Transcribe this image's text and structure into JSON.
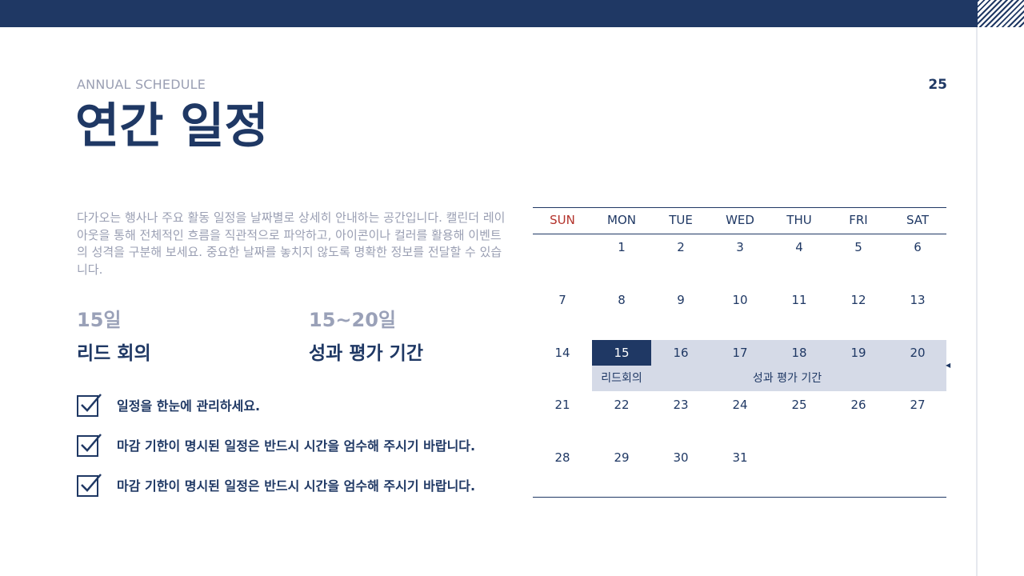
{
  "header": {
    "subtitle": "ANNUAL SCHEDULE",
    "title": "연간 일정",
    "page_number": "25"
  },
  "description": "다가오는 행사나 주요 활동 일정을 날짜별로 상세히 안내하는 공간입니다. 캘린더 레이아웃을 통해 전체적인 흐름을 직관적으로 파악하고, 아이콘이나 컬러를 활용해 이벤트의 성격을 구분해 보세요. 중요한 날짜를 놓치지 않도록 명확한 정보를 전달할 수 있습니다.",
  "events": [
    {
      "date": "15일",
      "name": "리드 회의"
    },
    {
      "date": "15~20일",
      "name": "성과 평가 기간"
    }
  ],
  "checklist": [
    "일정을 한눈에 관리하세요.",
    "마감 기한이 명시된 일정은 반드시 시간을 엄수해 주시기 바랍니다.",
    "마감 기한이 명시된 일정은 반드시 시간을 엄수해 주시기 바랍니다."
  ],
  "calendar": {
    "weekdays": [
      "SUN",
      "MON",
      "TUE",
      "WED",
      "THU",
      "FRI",
      "SAT"
    ],
    "weeks": [
      [
        "",
        "1",
        "2",
        "3",
        "4",
        "5",
        "6"
      ],
      [
        "7",
        "8",
        "9",
        "10",
        "11",
        "12",
        "13"
      ],
      [
        "14",
        "15",
        "16",
        "17",
        "18",
        "19",
        "20"
      ],
      [
        "21",
        "22",
        "23",
        "24",
        "25",
        "26",
        "27"
      ],
      [
        "28",
        "29",
        "30",
        "31",
        "",
        "",
        ""
      ]
    ],
    "highlighted_day": "15",
    "event_labels": {
      "lead_meeting": "리드회의",
      "evaluation": "성과 평가 기간"
    }
  },
  "colors": {
    "primary": "#1f3864",
    "muted": "#9a9fb3",
    "band": "#d5dae7",
    "sunday": "#b3322b"
  }
}
